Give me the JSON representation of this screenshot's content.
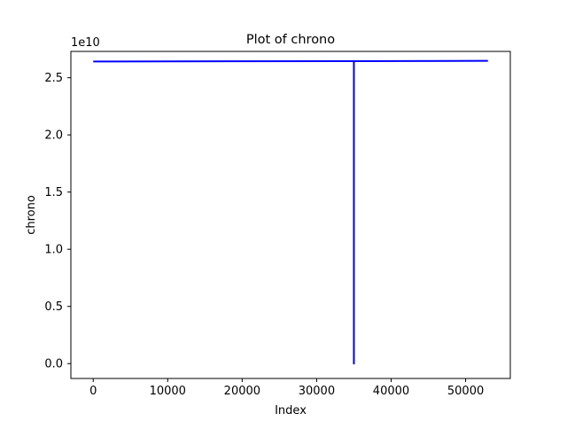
{
  "chart_data": {
    "type": "line",
    "title": "Plot of chrono",
    "xlabel": "Index",
    "ylabel": "chrono",
    "y_offset_label": "1e10",
    "xlim": [
      -3000,
      56000
    ],
    "ylim": [
      -0.13,
      2.73
    ],
    "y_scale_note": "values in units of 1e10",
    "x_ticks": [
      0,
      10000,
      20000,
      30000,
      40000,
      50000
    ],
    "x_tick_labels": [
      "0",
      "10000",
      "20000",
      "30000",
      "40000",
      "50000"
    ],
    "y_ticks": [
      0.0,
      0.5,
      1.0,
      1.5,
      2.0,
      2.5
    ],
    "y_tick_labels": [
      "0.0",
      "0.5",
      "1.0",
      "1.5",
      "2.0",
      "2.5"
    ],
    "grid": false,
    "legend": "none",
    "series": [
      {
        "color": "#0000ff",
        "x": [
          0,
          35000,
          35000,
          35002,
          35002,
          53000
        ],
        "y": [
          2.642,
          2.645,
          0.0,
          0.0,
          2.645,
          2.648
        ]
      }
    ]
  }
}
